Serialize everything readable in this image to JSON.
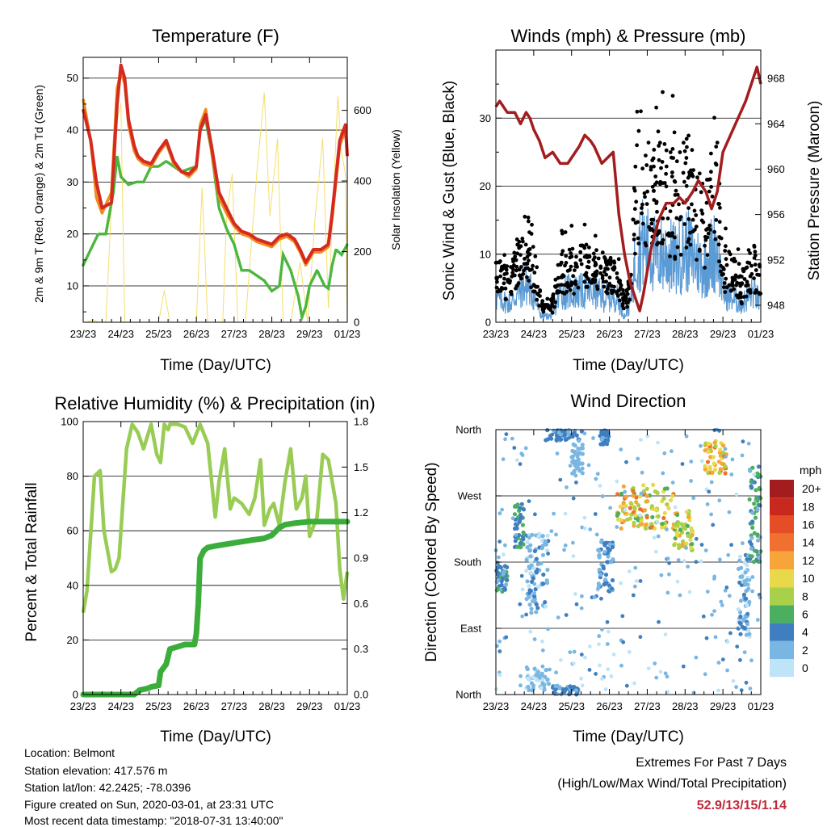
{
  "chart_data": [
    {
      "id": "temp",
      "type": "line",
      "title": "Temperature (F)",
      "xlabel": "Time (Day/UTC)",
      "ylabel": "2m & 9m T (Red, Orange) & 2m Td (Green)",
      "ylabel_right": "Solar Insolation (Yellow)",
      "x_ticks": [
        "23/23",
        "24/23",
        "25/23",
        "26/23",
        "27/23",
        "28/23",
        "29/23",
        "01/23"
      ],
      "ylim": [
        3,
        54
      ],
      "yticks": [
        10,
        20,
        30,
        40,
        50
      ],
      "ylim_right": [
        0,
        750
      ],
      "yticks_right": [
        0,
        200,
        400,
        600
      ],
      "grid": true,
      "series": [
        {
          "color": "#d42a20",
          "x": [
            0,
            0.1,
            0.2,
            0.35,
            0.5,
            0.75,
            0.9,
            1.0,
            1.1,
            1.2,
            1.35,
            1.45,
            1.6,
            1.8,
            2.0,
            2.2,
            2.4,
            2.6,
            2.8,
            3.0,
            3.1,
            3.25,
            3.4,
            3.6,
            3.8,
            4.0,
            4.2,
            4.4,
            4.6,
            4.8,
            5.0,
            5.2,
            5.4,
            5.6,
            5.75,
            5.9,
            6.1,
            6.3,
            6.5,
            6.6,
            6.8,
            6.95,
            7.0
          ],
          "y": [
            44,
            41,
            38,
            30,
            25,
            26,
            45,
            52.5,
            50,
            42,
            37,
            35,
            34,
            33.5,
            36,
            38,
            34,
            32,
            31.5,
            33,
            40,
            43,
            37,
            28,
            25,
            22,
            20.5,
            20,
            19,
            18.5,
            18,
            19.5,
            20,
            19,
            17,
            14.5,
            17,
            17,
            18,
            24,
            38,
            41,
            35
          ]
        },
        {
          "color": "#f08a1e",
          "x": [
            0,
            0.1,
            0.2,
            0.35,
            0.5,
            0.75,
            0.9,
            1.0,
            1.1,
            1.2,
            1.35,
            1.45,
            1.6,
            1.8,
            2.0,
            2.2,
            2.4,
            2.6,
            2.8,
            3.0,
            3.1,
            3.25,
            3.4,
            3.6,
            3.8,
            4.0,
            4.2,
            4.4,
            4.6,
            4.8,
            5.0,
            5.2,
            5.4,
            5.6,
            5.75,
            5.9,
            6.1,
            6.3,
            6.5,
            6.6,
            6.8,
            6.95,
            7.0
          ],
          "y": [
            46,
            42,
            38,
            27,
            24,
            28,
            48,
            51,
            49,
            41,
            36,
            34.5,
            33.5,
            33,
            35.5,
            37.5,
            33.5,
            32,
            31,
            32.5,
            41,
            44,
            36,
            27,
            24,
            21.5,
            20,
            19.5,
            18.5,
            18,
            17.5,
            19,
            19.5,
            18.5,
            16.5,
            14,
            16.5,
            16.5,
            17.5,
            23,
            37,
            40,
            35
          ]
        },
        {
          "color": "#4cb63f",
          "x": [
            0,
            0.2,
            0.4,
            0.6,
            0.8,
            0.9,
            1.0,
            1.2,
            1.4,
            1.6,
            1.8,
            2.0,
            2.2,
            2.4,
            2.6,
            2.8,
            3.0,
            3.1,
            3.25,
            3.4,
            3.6,
            3.8,
            4.0,
            4.2,
            4.4,
            4.6,
            4.8,
            5.0,
            5.2,
            5.3,
            5.5,
            5.7,
            5.8,
            5.9,
            6.0,
            6.2,
            6.4,
            6.5,
            6.6,
            6.7,
            6.85,
            7.0
          ],
          "y": [
            14,
            17,
            20,
            20,
            28,
            35,
            31,
            29.5,
            30,
            30,
            33,
            33,
            34,
            33,
            32,
            32.5,
            33,
            40,
            42,
            36,
            25,
            21,
            18,
            13,
            13,
            12,
            11,
            9,
            10,
            16,
            13,
            8,
            4,
            6,
            10,
            13,
            10,
            9.5,
            14,
            17,
            16,
            18
          ]
        },
        {
          "color": "#f4e06a",
          "x": [
            0,
            0.1,
            0.25,
            0.4,
            0.6,
            0.85,
            1.0,
            1.1,
            1.25,
            1.4,
            1.6,
            1.8,
            2.0,
            2.15,
            2.3,
            2.5,
            2.8,
            3.0,
            3.15,
            3.3,
            3.5,
            3.7,
            3.8,
            3.95,
            4.1,
            4.3,
            4.6,
            4.8,
            4.95,
            5.15,
            5.3,
            5.5,
            5.75,
            5.95,
            6.15,
            6.35,
            6.5,
            6.75,
            6.85,
            6.95,
            7.0
          ],
          "y": [
            0,
            0,
            8,
            0,
            0,
            550,
            620,
            0,
            0,
            0,
            0,
            0,
            0,
            90,
            0,
            0,
            0,
            0,
            380,
            0,
            0,
            0,
            300,
            420,
            0,
            0,
            420,
            650,
            300,
            520,
            0,
            0,
            170,
            0,
            300,
            520,
            40,
            640,
            480,
            420,
            0
          ]
        }
      ]
    },
    {
      "id": "wind",
      "type": "scatter",
      "title": "Winds (mph) & Pressure (mb)",
      "xlabel": "Time (Day/UTC)",
      "ylabel": "Sonic Wind & Gust (Blue, Black)",
      "ylabel_right": "Station Pressure (Maroon)",
      "x_ticks": [
        "23/23",
        "24/23",
        "25/23",
        "26/23",
        "27/23",
        "28/23",
        "29/23",
        "01/23"
      ],
      "ylim": [
        0,
        40
      ],
      "yticks": [
        0,
        10,
        20,
        30
      ],
      "ylim_right": [
        946.5,
        970.5
      ],
      "yticks_right": [
        948,
        952,
        956,
        960,
        964,
        968
      ],
      "grid": true,
      "gust_envelope": {
        "x": [
          0,
          0.4,
          0.6,
          0.8,
          0.95,
          1.2,
          1.5,
          1.7,
          2.0,
          2.3,
          2.6,
          2.85,
          3.0,
          3.2,
          3.4,
          3.55,
          3.7,
          3.85,
          4.0,
          4.2,
          4.5,
          4.8,
          5.0,
          5.3,
          5.5,
          5.7,
          5.85,
          6.0,
          6.2,
          6.5,
          6.8,
          7.0
        ],
        "y": [
          8,
          7,
          10,
          14,
          11,
          3,
          3,
          9,
          9,
          10,
          9,
          9,
          9,
          8,
          3,
          7,
          22,
          28,
          24,
          22,
          22,
          20,
          23,
          20,
          17,
          22,
          23,
          10,
          9,
          6,
          10,
          7
        ]
      },
      "wind_envelope": {
        "x": [
          0,
          0.4,
          0.6,
          0.8,
          0.95,
          1.2,
          1.5,
          1.7,
          2.0,
          2.3,
          2.6,
          2.85,
          3.0,
          3.2,
          3.4,
          3.55,
          3.7,
          3.85,
          4.0,
          4.2,
          4.5,
          4.8,
          5.0,
          5.3,
          5.5,
          5.7,
          5.85,
          6.0,
          6.2,
          6.5,
          6.8,
          7.0
        ],
        "y": [
          4,
          3,
          5,
          6,
          5,
          1,
          1,
          5,
          5,
          5,
          5,
          4,
          4,
          4,
          1,
          3,
          11,
          13,
          12,
          11,
          11,
          10,
          12,
          10,
          9,
          11,
          12,
          5,
          4,
          3,
          5,
          3
        ]
      },
      "pressure": {
        "color": "#a31d1f",
        "x": [
          0,
          0.1,
          0.3,
          0.5,
          0.65,
          0.8,
          0.9,
          1.0,
          1.15,
          1.3,
          1.5,
          1.7,
          1.9,
          2.0,
          2.2,
          2.35,
          2.5,
          2.6,
          2.8,
          2.95,
          3.1,
          3.25,
          3.4,
          3.55,
          3.7,
          3.8,
          3.9,
          4.1,
          4.3,
          4.5,
          4.7,
          4.85,
          5.0,
          5.2,
          5.35,
          5.55,
          5.7,
          5.85,
          6.0,
          6.2,
          6.4,
          6.6,
          6.75,
          6.9,
          7.0
        ],
        "y": [
          965.5,
          966,
          965,
          965,
          964,
          965,
          964.5,
          963.5,
          962.5,
          961,
          961.5,
          960.5,
          960.5,
          961,
          962,
          963,
          962.5,
          962,
          960.5,
          961,
          961.5,
          956,
          952.5,
          950,
          948.5,
          947.5,
          949,
          953,
          955.5,
          957,
          957,
          957.5,
          957,
          958,
          959,
          958,
          956.5,
          958,
          961.5,
          963,
          964.5,
          966,
          967.5,
          969,
          967.5
        ]
      }
    },
    {
      "id": "rh",
      "type": "line",
      "title": "Relative Humidity (%) & Precipitation (in)",
      "xlabel": "Time (Day/UTC)",
      "ylabel": "Percent & Total Rainfall",
      "x_ticks": [
        "23/23",
        "24/23",
        "25/23",
        "26/23",
        "27/23",
        "28/23",
        "29/23",
        "01/23"
      ],
      "ylim": [
        0,
        100
      ],
      "yticks": [
        0,
        20,
        40,
        60,
        80,
        100
      ],
      "ylim_right": [
        0,
        1.8
      ],
      "yticks_right": [
        "0.0",
        "0.3",
        "0.6",
        "0.9",
        "1.2",
        "1.5",
        "1.8"
      ],
      "grid": true,
      "series": [
        {
          "color": "#98cc55",
          "x": [
            0,
            0.1,
            0.3,
            0.45,
            0.55,
            0.75,
            0.85,
            0.95,
            1.15,
            1.3,
            1.45,
            1.6,
            1.8,
            1.95,
            2.05,
            2.15,
            2.25,
            2.3,
            2.5,
            2.7,
            2.9,
            3.1,
            3.3,
            3.5,
            3.6,
            3.75,
            3.9,
            4.0,
            4.2,
            4.4,
            4.55,
            4.7,
            4.8,
            4.95,
            5.05,
            5.2,
            5.35,
            5.5,
            5.65,
            5.8,
            5.9,
            6.0,
            6.2,
            6.35,
            6.5,
            6.7,
            6.8,
            6.9,
            7.0
          ],
          "y": [
            30,
            38,
            80,
            82,
            60,
            45,
            46,
            50,
            90,
            99,
            96,
            90,
            99,
            88,
            85,
            99,
            97,
            99,
            99,
            98,
            92,
            99,
            92,
            65,
            78,
            90,
            68,
            72,
            70,
            66,
            72,
            86,
            62,
            68,
            70,
            62,
            78,
            90,
            68,
            72,
            80,
            58,
            65,
            88,
            86,
            70,
            46,
            35,
            45
          ]
        },
        {
          "color": "#3aad3a",
          "x": [
            0,
            1.35,
            1.5,
            1.7,
            1.8,
            2.0,
            2.05,
            2.2,
            2.3,
            2.7,
            2.95,
            3.0,
            3.05,
            3.1,
            3.2,
            3.3,
            3.5,
            4.0,
            4.5,
            4.8,
            5.0,
            5.2,
            5.35,
            5.6,
            6.0,
            7.0
          ],
          "y": [
            0,
            0,
            0.03,
            0.04,
            0.05,
            0.06,
            0.15,
            0.2,
            0.3,
            0.33,
            0.33,
            0.4,
            0.6,
            0.9,
            0.95,
            0.97,
            0.98,
            1.0,
            1.02,
            1.03,
            1.05,
            1.1,
            1.12,
            1.13,
            1.14,
            1.14
          ]
        }
      ]
    },
    {
      "id": "dir",
      "type": "scatter",
      "title": "Wind Direction",
      "xlabel": "Time (Day/UTC)",
      "ylabel": "Direction (Colored By Speed)",
      "x_ticks": [
        "23/23",
        "24/23",
        "25/23",
        "26/23",
        "27/23",
        "28/23",
        "29/23",
        "01/23"
      ],
      "ylim": [
        0,
        360
      ],
      "y_ticks": [
        "North",
        "East",
        "South",
        "West",
        "North"
      ],
      "grid": true,
      "legend_title": "mph",
      "legend_placement": "right",
      "legend_labels": [
        "20+",
        "18",
        "16",
        "14",
        "12",
        "10",
        "8",
        "6",
        "4",
        "2",
        "0"
      ],
      "legend_colors": [
        "#a31d1f",
        "#c8281e",
        "#e44d26",
        "#f07030",
        "#f7a43a",
        "#e7d94a",
        "#a9d04a",
        "#4caf60",
        "#3f7fc0",
        "#79b6e2",
        "#bfe4f7"
      ],
      "clusters": [
        {
          "x": [
            0.0,
            0.3
          ],
          "y": [
            140,
            175
          ],
          "s": [
            2,
            6
          ]
        },
        {
          "x": [
            0.5,
            0.75
          ],
          "y": [
            200,
            260
          ],
          "s": [
            3,
            7
          ]
        },
        {
          "x": [
            0.8,
            1.4
          ],
          "y": [
            5,
            35
          ],
          "s": [
            0,
            3
          ]
        },
        {
          "x": [
            0.8,
            1.4
          ],
          "y": [
            110,
            220
          ],
          "s": [
            0,
            4
          ]
        },
        {
          "x": [
            1.3,
            2.3
          ],
          "y": [
            345,
            360
          ],
          "s": [
            2,
            5
          ]
        },
        {
          "x": [
            1.5,
            2.2
          ],
          "y": [
            0,
            12
          ],
          "s": [
            2,
            5
          ]
        },
        {
          "x": [
            2.0,
            2.3
          ],
          "y": [
            300,
            340
          ],
          "s": [
            1,
            3
          ]
        },
        {
          "x": [
            2.7,
            3.1
          ],
          "y": [
            140,
            210
          ],
          "s": [
            2,
            5
          ]
        },
        {
          "x": [
            2.75,
            3.0
          ],
          "y": [
            340,
            360
          ],
          "s": [
            2,
            5
          ]
        },
        {
          "x": [
            3.2,
            4.7
          ],
          "y": [
            225,
            285
          ],
          "s": [
            6,
            14
          ]
        },
        {
          "x": [
            4.7,
            5.2
          ],
          "y": [
            195,
            250
          ],
          "s": [
            6,
            12
          ]
        },
        {
          "x": [
            5.5,
            6.1
          ],
          "y": [
            300,
            345
          ],
          "s": [
            8,
            14
          ]
        },
        {
          "x": [
            6.4,
            6.7
          ],
          "y": [
            80,
            190
          ],
          "s": [
            0,
            4
          ]
        },
        {
          "x": [
            6.7,
            7.0
          ],
          "y": [
            180,
            310
          ],
          "s": [
            2,
            7
          ]
        }
      ]
    }
  ],
  "info": {
    "location": "Location: Belmont",
    "elevation": "Station elevation: 417.576 m",
    "latlon": "Station lat/lon: 42.2425; -78.0396",
    "created": "Figure created on Sun, 2020-03-01, at 23:31 UTC",
    "recent": "Most recent data timestamp: \"2018-07-31 13:40:00\""
  },
  "extremes": {
    "title": "Extremes For Past 7 Days",
    "subtitle": "(High/Low/Max Wind/Total Precipitation)",
    "values": "52.9/13/15/1.14"
  }
}
